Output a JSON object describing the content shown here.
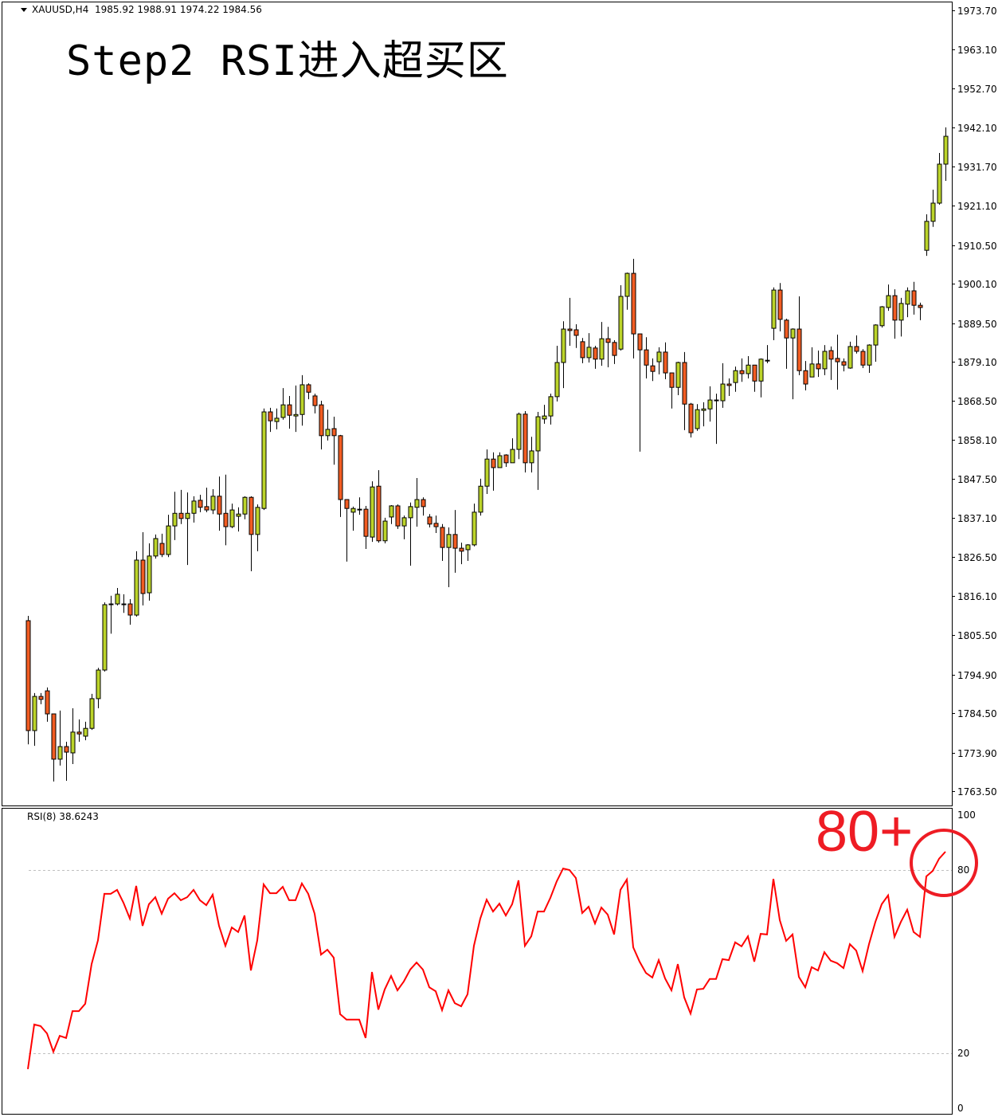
{
  "header": {
    "symbol": "XAUUSD,H4",
    "ohlc": "1985.92 1988.91 1974.22 1984.56",
    "dropdown_icon": "triangle-down-icon"
  },
  "title": "Step2 RSI进入超买区",
  "annotation": {
    "text": "80+",
    "color": "#ee1c24",
    "circle_icon": "circle-highlight"
  },
  "indicator": {
    "label": "RSI(8) 38.6243",
    "color": "#ff0000"
  },
  "colors": {
    "bull": "#bcd42a",
    "bear": "#f25c22",
    "outline": "#000000",
    "level_line": "#c0c0c0"
  },
  "chart_data": [
    {
      "type": "candlestick",
      "symbol": "XAUUSD",
      "timeframe": "H4",
      "ylim": [
        1763.5,
        1973.7
      ],
      "y_ticks": [
        "1973.70",
        "1963.10",
        "1952.70",
        "1942.10",
        "1931.70",
        "1921.10",
        "1910.50",
        "1900.10",
        "1889.50",
        "1879.10",
        "1868.50",
        "1858.10",
        "1847.50",
        "1837.10",
        "1826.50",
        "1816.10",
        "1805.50",
        "1794.90",
        "1784.50",
        "1773.90",
        "1763.50"
      ],
      "grid": false,
      "candles_ohlc": [
        [
          1809.4,
          1810.7,
          1776.1,
          1779.8
        ],
        [
          1779.8,
          1789.9,
          1775.7,
          1789.0
        ],
        [
          1789.0,
          1789.9,
          1786.9,
          1788.2
        ],
        [
          1790.5,
          1791.4,
          1782.2,
          1784.3
        ],
        [
          1784.3,
          1784.3,
          1766.1,
          1772.1
        ],
        [
          1772.1,
          1785.2,
          1770.4,
          1775.5
        ],
        [
          1775.5,
          1776.8,
          1766.3,
          1774.0
        ],
        [
          1773.8,
          1785.8,
          1770.8,
          1779.4
        ],
        [
          1779.4,
          1782.8,
          1776.8,
          1778.9
        ],
        [
          1778.3,
          1782.2,
          1777.2,
          1780.4
        ],
        [
          1780.4,
          1789.7,
          1780.0,
          1788.4
        ],
        [
          1788.4,
          1796.7,
          1785.8,
          1796.1
        ],
        [
          1796.1,
          1814.3,
          1795.7,
          1813.7
        ],
        [
          1813.9,
          1816.1,
          1805.9,
          1813.9
        ],
        [
          1813.9,
          1818.2,
          1813.5,
          1816.5
        ],
        [
          1813.9,
          1816.5,
          1811.5,
          1813.9
        ],
        [
          1813.9,
          1815.2,
          1808.3,
          1810.9
        ],
        [
          1810.9,
          1828.1,
          1810.5,
          1825.7
        ],
        [
          1825.7,
          1833.2,
          1813.5,
          1816.7
        ],
        [
          1816.9,
          1830.2,
          1814.8,
          1826.8
        ],
        [
          1826.8,
          1832.6,
          1826.1,
          1831.5
        ],
        [
          1830.2,
          1832.8,
          1826.5,
          1827.2
        ],
        [
          1827.2,
          1837.9,
          1826.5,
          1834.9
        ],
        [
          1834.9,
          1844.1,
          1831.1,
          1838.3
        ],
        [
          1838.3,
          1844.6,
          1835.4,
          1836.9
        ],
        [
          1836.9,
          1843.9,
          1824.4,
          1838.3
        ],
        [
          1838.3,
          1842.9,
          1835.8,
          1841.6
        ],
        [
          1841.8,
          1843.3,
          1838.6,
          1839.9
        ],
        [
          1840.1,
          1845.2,
          1838.6,
          1839.2
        ],
        [
          1839.2,
          1844.8,
          1838.1,
          1842.9
        ],
        [
          1842.9,
          1848.2,
          1833.6,
          1838.1
        ],
        [
          1838.3,
          1848.7,
          1829.7,
          1834.7
        ],
        [
          1834.7,
          1840.9,
          1834.3,
          1839.2
        ],
        [
          1837.5,
          1839.9,
          1833.4,
          1838.1
        ],
        [
          1838.1,
          1842.9,
          1836.7,
          1842.6
        ],
        [
          1842.6,
          1842.9,
          1822.7,
          1832.6
        ],
        [
          1832.6,
          1840.7,
          1828.1,
          1839.9
        ],
        [
          1839.6,
          1866.5,
          1839.2,
          1865.6
        ],
        [
          1865.6,
          1866.7,
          1860.2,
          1863.2
        ],
        [
          1863.0,
          1866.5,
          1860.9,
          1863.9
        ],
        [
          1864.1,
          1872.0,
          1863.5,
          1867.5
        ],
        [
          1867.5,
          1869.9,
          1861.1,
          1864.7
        ],
        [
          1864.5,
          1872.7,
          1860.2,
          1864.9
        ],
        [
          1864.9,
          1875.5,
          1861.9,
          1872.9
        ],
        [
          1872.9,
          1873.3,
          1869.0,
          1870.9
        ],
        [
          1869.9,
          1870.5,
          1865.2,
          1867.3
        ],
        [
          1867.5,
          1868.6,
          1855.5,
          1859.2
        ],
        [
          1859.2,
          1866.2,
          1857.9,
          1860.9
        ],
        [
          1861.1,
          1864.3,
          1851.4,
          1859.2
        ],
        [
          1859.2,
          1859.4,
          1837.3,
          1842.0
        ],
        [
          1842.0,
          1842.0,
          1825.3,
          1839.6
        ],
        [
          1838.6,
          1840.1,
          1833.6,
          1839.6
        ],
        [
          1839.4,
          1842.6,
          1837.9,
          1839.4
        ],
        [
          1839.4,
          1840.3,
          1828.7,
          1832.1
        ],
        [
          1831.9,
          1846.9,
          1830.6,
          1845.4
        ],
        [
          1845.6,
          1849.9,
          1830.4,
          1830.9
        ],
        [
          1830.9,
          1837.1,
          1830.2,
          1836.2
        ],
        [
          1837.3,
          1840.5,
          1835.4,
          1840.3
        ],
        [
          1840.3,
          1840.7,
          1834.1,
          1834.9
        ],
        [
          1834.9,
          1837.7,
          1831.3,
          1837.1
        ],
        [
          1837.1,
          1841.2,
          1824.2,
          1840.1
        ],
        [
          1839.9,
          1847.8,
          1834.7,
          1842.0
        ],
        [
          1842.0,
          1842.6,
          1837.7,
          1840.1
        ],
        [
          1837.3,
          1838.1,
          1834.5,
          1835.4
        ],
        [
          1835.6,
          1837.7,
          1833.0,
          1834.7
        ],
        [
          1834.5,
          1835.4,
          1825.5,
          1829.1
        ],
        [
          1829.1,
          1834.5,
          1818.4,
          1832.6
        ],
        [
          1832.6,
          1839.2,
          1822.3,
          1828.9
        ],
        [
          1828.9,
          1830.4,
          1824.6,
          1828.1
        ],
        [
          1828.5,
          1830.0,
          1825.5,
          1829.8
        ],
        [
          1829.8,
          1840.9,
          1829.4,
          1838.6
        ],
        [
          1838.6,
          1847.6,
          1837.7,
          1845.6
        ],
        [
          1845.6,
          1855.5,
          1843.5,
          1852.9
        ],
        [
          1852.9,
          1854.7,
          1844.4,
          1850.6
        ],
        [
          1850.6,
          1854.7,
          1850.6,
          1853.8
        ],
        [
          1854.0,
          1854.2,
          1850.8,
          1851.9
        ],
        [
          1851.9,
          1858.5,
          1851.9,
          1855.5
        ],
        [
          1855.5,
          1865.4,
          1852.9,
          1865.0
        ],
        [
          1865.0,
          1865.8,
          1849.3,
          1851.9
        ],
        [
          1851.9,
          1858.9,
          1849.3,
          1855.1
        ],
        [
          1855.1,
          1865.6,
          1844.6,
          1864.3
        ],
        [
          1863.7,
          1867.5,
          1862.4,
          1864.5
        ],
        [
          1864.5,
          1870.5,
          1862.2,
          1869.7
        ],
        [
          1869.7,
          1883.4,
          1868.4,
          1878.9
        ],
        [
          1878.9,
          1890.0,
          1872.0,
          1887.9
        ],
        [
          1887.9,
          1896.3,
          1883.4,
          1887.5
        ],
        [
          1887.7,
          1889.2,
          1882.8,
          1886.2
        ],
        [
          1884.5,
          1885.5,
          1878.7,
          1880.2
        ],
        [
          1880.2,
          1886.8,
          1878.9,
          1883.0
        ],
        [
          1882.8,
          1883.4,
          1877.2,
          1879.8
        ],
        [
          1879.8,
          1889.8,
          1878.0,
          1885.3
        ],
        [
          1885.3,
          1888.5,
          1877.6,
          1884.3
        ],
        [
          1884.3,
          1884.9,
          1878.5,
          1880.8
        ],
        [
          1882.5,
          1899.7,
          1882.1,
          1896.7
        ],
        [
          1896.7,
          1903.1,
          1893.1,
          1902.9
        ],
        [
          1902.9,
          1906.8,
          1880.0,
          1886.6
        ],
        [
          1886.6,
          1886.6,
          1854.9,
          1882.3
        ],
        [
          1882.3,
          1885.7,
          1874.6,
          1878.2
        ],
        [
          1878.0,
          1880.0,
          1873.9,
          1876.5
        ],
        [
          1879.1,
          1883.0,
          1875.7,
          1881.7
        ],
        [
          1881.7,
          1884.3,
          1874.4,
          1876.1
        ],
        [
          1876.1,
          1876.1,
          1866.5,
          1872.2
        ],
        [
          1872.2,
          1879.1,
          1870.1,
          1878.9
        ],
        [
          1878.9,
          1881.7,
          1860.7,
          1867.7
        ],
        [
          1867.7,
          1868.0,
          1858.7,
          1860.0
        ],
        [
          1861.1,
          1867.7,
          1860.5,
          1866.2
        ],
        [
          1866.0,
          1868.2,
          1861.7,
          1866.4
        ],
        [
          1866.4,
          1872.5,
          1863.0,
          1868.8
        ],
        [
          1868.8,
          1870.5,
          1857.0,
          1868.8
        ],
        [
          1868.6,
          1878.7,
          1866.7,
          1873.1
        ],
        [
          1873.1,
          1874.6,
          1869.9,
          1872.7
        ],
        [
          1873.5,
          1877.8,
          1871.0,
          1876.7
        ],
        [
          1876.7,
          1880.0,
          1873.7,
          1875.9
        ],
        [
          1875.9,
          1880.6,
          1874.6,
          1878.2
        ],
        [
          1878.2,
          1878.2,
          1871.0,
          1873.9
        ],
        [
          1873.9,
          1880.0,
          1869.5,
          1879.8
        ],
        [
          1879.5,
          1883.6,
          1878.7,
          1879.5
        ],
        [
          1888.1,
          1899.1,
          1884.9,
          1898.4
        ],
        [
          1898.4,
          1900.3,
          1887.3,
          1890.5
        ],
        [
          1890.3,
          1890.7,
          1877.2,
          1885.5
        ],
        [
          1885.5,
          1888.1,
          1869.0,
          1887.9
        ],
        [
          1887.9,
          1896.7,
          1875.5,
          1876.7
        ],
        [
          1876.7,
          1879.3,
          1871.4,
          1873.1
        ],
        [
          1875.0,
          1883.0,
          1875.0,
          1878.5
        ],
        [
          1878.5,
          1882.1,
          1875.0,
          1877.2
        ],
        [
          1877.2,
          1883.6,
          1875.5,
          1881.9
        ],
        [
          1882.1,
          1883.2,
          1874.2,
          1879.8
        ],
        [
          1880.0,
          1886.4,
          1871.6,
          1879.1
        ],
        [
          1879.1,
          1880.0,
          1876.5,
          1878.2
        ],
        [
          1877.4,
          1884.5,
          1877.2,
          1883.2
        ],
        [
          1883.2,
          1886.2,
          1881.3,
          1881.9
        ],
        [
          1881.9,
          1882.5,
          1877.4,
          1878.2
        ],
        [
          1878.2,
          1883.8,
          1876.1,
          1883.6
        ],
        [
          1883.6,
          1889.2,
          1879.1,
          1889.0
        ],
        [
          1888.8,
          1894.1,
          1888.3,
          1893.9
        ],
        [
          1893.7,
          1899.9,
          1892.8,
          1896.9
        ],
        [
          1896.9,
          1898.6,
          1885.3,
          1890.3
        ],
        [
          1890.3,
          1896.3,
          1885.9,
          1894.8
        ],
        [
          1894.6,
          1899.1,
          1891.1,
          1898.2
        ],
        [
          1898.2,
          1900.6,
          1891.8,
          1894.3
        ],
        [
          1894.3,
          1895.0,
          1890.3,
          1893.7
        ],
        [
          1909.1,
          1918.8,
          1907.6,
          1916.9
        ],
        [
          1916.9,
          1925.4,
          1915.4,
          1921.8
        ],
        [
          1921.8,
          1935.3,
          1921.4,
          1932.3
        ],
        [
          1932.3,
          1942.2,
          1927.8,
          1939.8
        ]
      ]
    },
    {
      "type": "line",
      "name": "RSI(8)",
      "ylim": [
        0,
        100
      ],
      "y_ticks": [
        "100",
        "80",
        "20",
        "0"
      ],
      "levels": [
        80,
        20
      ],
      "values": [
        14.8,
        29.4,
        28.9,
        26.5,
        20.5,
        25.7,
        25.0,
        33.8,
        33.8,
        36.2,
        49.2,
        57.0,
        72.2,
        72.2,
        73.5,
        69.3,
        64.1,
        74.8,
        61.7,
        68.8,
        71.1,
        65.7,
        70.6,
        72.4,
        70.1,
        71.1,
        73.5,
        70.1,
        68.5,
        71.9,
        61.7,
        55.2,
        61.2,
        59.7,
        65.1,
        47.1,
        57.0,
        75.3,
        72.4,
        72.4,
        74.5,
        70.1,
        70.1,
        75.6,
        72.2,
        65.7,
        52.3,
        53.9,
        51.3,
        32.8,
        31.0,
        31.0,
        31.0,
        25.0,
        46.6,
        34.3,
        40.9,
        45.3,
        40.6,
        43.5,
        47.4,
        49.7,
        47.4,
        41.6,
        40.3,
        34.1,
        40.6,
        36.4,
        35.4,
        39.3,
        55.2,
        64.1,
        70.3,
        66.4,
        69.0,
        65.1,
        68.8,
        76.6,
        55.2,
        58.3,
        66.4,
        66.4,
        70.9,
        76.3,
        80.5,
        80.0,
        77.4,
        65.9,
        68.0,
        62.5,
        67.7,
        65.4,
        58.9,
        73.5,
        76.9,
        54.7,
        50.0,
        46.3,
        44.8,
        50.5,
        44.5,
        40.6,
        49.2,
        38.3,
        33.0,
        40.9,
        41.1,
        44.3,
        44.3,
        50.8,
        50.5,
        56.3,
        55.0,
        58.3,
        50.0,
        59.1,
        58.9,
        77.1,
        63.6,
        56.8,
        58.9,
        45.0,
        41.6,
        48.2,
        47.1,
        53.1,
        50.3,
        49.5,
        47.9,
        55.7,
        53.6,
        46.9,
        55.7,
        63.0,
        68.8,
        71.7,
        58.1,
        63.0,
        67.0,
        59.7,
        58.1,
        77.9,
        79.7,
        83.7,
        86.0
      ]
    }
  ]
}
